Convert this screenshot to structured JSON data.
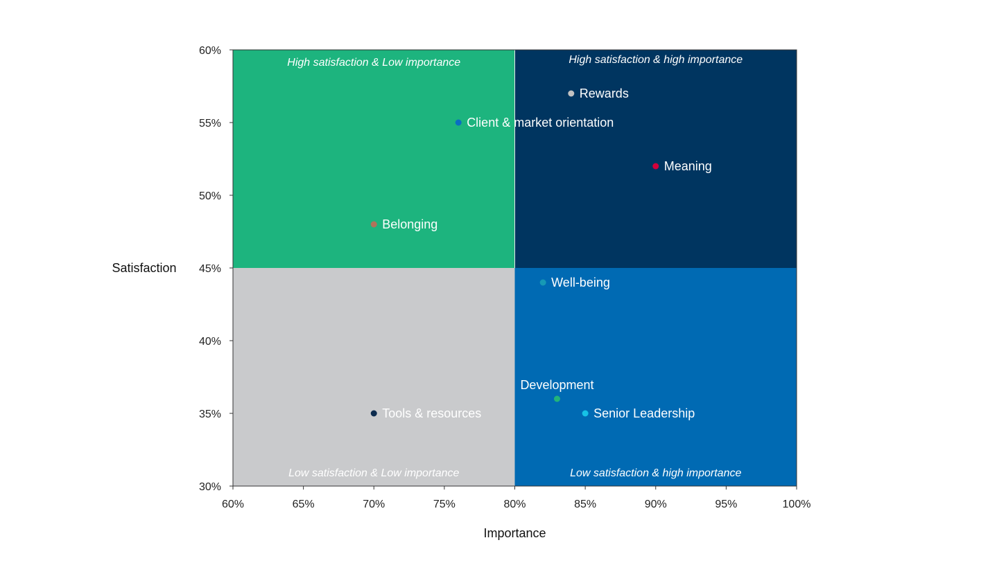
{
  "chart_data": {
    "type": "scatter",
    "xlabel": "Importance",
    "ylabel": "Satisfaction",
    "xlim": [
      0.6,
      1.0
    ],
    "ylim": [
      0.3,
      0.6
    ],
    "x_divider": 0.8,
    "y_divider": 0.45,
    "x_ticks": [
      "60%",
      "65%",
      "70%",
      "75%",
      "80%",
      "85%",
      "90%",
      "95%",
      "100%"
    ],
    "y_ticks": [
      "60%",
      "55%",
      "50%",
      "45%",
      "40%",
      "35%",
      "30%"
    ],
    "grid": false,
    "quadrants": [
      {
        "id": "tl",
        "label": "High satisfaction & Low importance",
        "color": "#1db47e"
      },
      {
        "id": "tr",
        "label": "High satisfaction & high importance",
        "color": "#003560"
      },
      {
        "id": "bl",
        "label": "Low satisfaction & Low importance",
        "color": "#c9cacc"
      },
      {
        "id": "br",
        "label": "Low satisfaction & high importance",
        "color": "#006ab3"
      }
    ],
    "points": [
      {
        "label": "Rewards",
        "x": 0.84,
        "y": 0.57,
        "color": "#c2c2c2"
      },
      {
        "label": "Client & market orientation",
        "x": 0.76,
        "y": 0.55,
        "color": "#0a6ec2"
      },
      {
        "label": "Meaning",
        "x": 0.9,
        "y": 0.52,
        "color": "#d4003a"
      },
      {
        "label": "Belonging",
        "x": 0.7,
        "y": 0.48,
        "color": "#b0735a"
      },
      {
        "label": "Well-being",
        "x": 0.82,
        "y": 0.44,
        "color": "#1699b5"
      },
      {
        "label": "Development",
        "x": 0.83,
        "y": 0.36,
        "color": "#22b47a"
      },
      {
        "label": "Tools & resources",
        "x": 0.7,
        "y": 0.35,
        "color": "#0c2b4e"
      },
      {
        "label": "Senior Leadership",
        "x": 0.85,
        "y": 0.35,
        "color": "#16c2e6"
      }
    ]
  }
}
